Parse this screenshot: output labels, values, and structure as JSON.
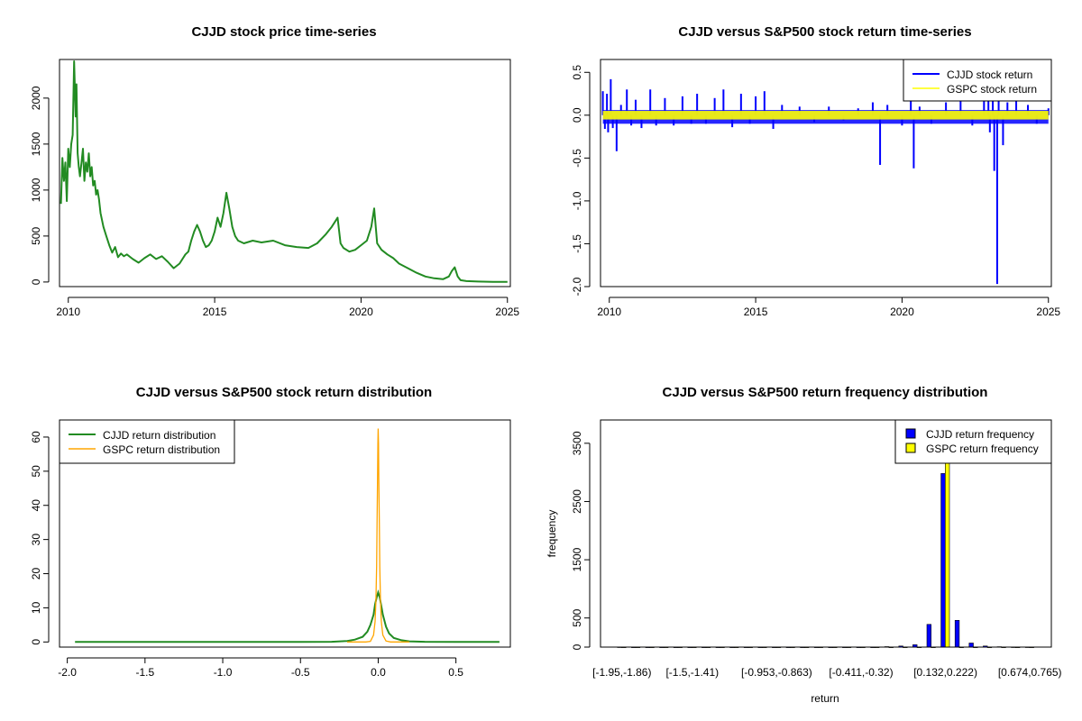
{
  "chart_data": [
    {
      "id": "price",
      "type": "line",
      "title": "CJJD stock price time-series",
      "xlabel": "",
      "ylabel": "",
      "xlim": [
        2009.7,
        2025.1
      ],
      "ylim": [
        -50,
        2420
      ],
      "xticks": [
        2010,
        2015,
        2020,
        2025
      ],
      "yticks": [
        0,
        500,
        1000,
        1500,
        2000
      ],
      "grid": false,
      "series": [
        {
          "color": "#228B22",
          "x": [
            2009.75,
            2009.8,
            2009.85,
            2009.9,
            2009.95,
            2010.0,
            2010.05,
            2010.1,
            2010.15,
            2010.2,
            2010.25,
            2010.28,
            2010.32,
            2010.36,
            2010.4,
            2010.45,
            2010.5,
            2010.55,
            2010.6,
            2010.65,
            2010.7,
            2010.75,
            2010.8,
            2010.85,
            2010.9,
            2010.95,
            2011.0,
            2011.05,
            2011.1,
            2011.2,
            2011.3,
            2011.4,
            2011.5,
            2011.6,
            2011.7,
            2011.8,
            2011.9,
            2012.0,
            2012.2,
            2012.4,
            2012.6,
            2012.8,
            2013.0,
            2013.2,
            2013.4,
            2013.6,
            2013.8,
            2014.0,
            2014.1,
            2014.2,
            2014.3,
            2014.4,
            2014.5,
            2014.6,
            2014.7,
            2014.8,
            2014.9,
            2015.0,
            2015.1,
            2015.2,
            2015.3,
            2015.4,
            2015.5,
            2015.6,
            2015.7,
            2015.8,
            2016.0,
            2016.3,
            2016.6,
            2017.0,
            2017.4,
            2017.8,
            2018.2,
            2018.5,
            2018.8,
            2019.0,
            2019.1,
            2019.2,
            2019.3,
            2019.4,
            2019.6,
            2019.8,
            2020.0,
            2020.2,
            2020.35,
            2020.45,
            2020.55,
            2020.7,
            2020.9,
            2021.1,
            2021.3,
            2021.6,
            2021.9,
            2022.2,
            2022.5,
            2022.8,
            2023.0,
            2023.1,
            2023.2,
            2023.3,
            2023.4,
            2023.6,
            2024.0,
            2024.5,
            2025.0
          ],
          "values": [
            850,
            1350,
            1100,
            1300,
            880,
            1450,
            1250,
            1500,
            1600,
            2400,
            1800,
            2150,
            1400,
            1250,
            1150,
            1300,
            1450,
            1100,
            1300,
            1200,
            1400,
            1150,
            1250,
            1050,
            1100,
            950,
            1000,
            900,
            750,
            600,
            500,
            400,
            320,
            380,
            270,
            310,
            280,
            300,
            250,
            210,
            260,
            300,
            250,
            280,
            220,
            150,
            200,
            300,
            330,
            450,
            550,
            620,
            550,
            450,
            380,
            400,
            450,
            550,
            700,
            600,
            750,
            970,
            800,
            600,
            500,
            450,
            420,
            450,
            430,
            450,
            400,
            380,
            370,
            420,
            520,
            600,
            650,
            700,
            420,
            370,
            330,
            350,
            400,
            450,
            600,
            800,
            420,
            350,
            300,
            260,
            200,
            150,
            100,
            60,
            40,
            30,
            60,
            120,
            160,
            60,
            20,
            10,
            5,
            2,
            1
          ]
        }
      ]
    },
    {
      "id": "returns",
      "type": "line",
      "title": "CJJD versus S&P500 stock return time-series",
      "xlabel": "",
      "ylabel": "",
      "xlim": [
        2009.7,
        2025.1
      ],
      "ylim": [
        -2.0,
        0.65
      ],
      "xticks": [
        2010,
        2015,
        2020,
        2025
      ],
      "yticks": [
        0.5,
        0.0,
        -0.5,
        -1.0,
        -1.5,
        -2.0
      ],
      "ytick_labels": [
        "0.5",
        "0.0",
        "-0.5",
        "-1.0",
        "-1.5",
        "-2.0"
      ],
      "grid": false,
      "legend_position": "top-right",
      "series": [
        {
          "name": "CJJD stock return",
          "color": "#0000FF",
          "spikes": [
            [
              2009.78,
              0.28
            ],
            [
              2009.85,
              -0.16
            ],
            [
              2009.92,
              0.25
            ],
            [
              2009.96,
              -0.2
            ],
            [
              2010.05,
              0.42
            ],
            [
              2010.12,
              -0.15
            ],
            [
              2010.25,
              -0.42
            ],
            [
              2010.4,
              0.12
            ],
            [
              2010.6,
              0.3
            ],
            [
              2010.75,
              -0.12
            ],
            [
              2010.9,
              0.18
            ],
            [
              2011.1,
              -0.15
            ],
            [
              2011.4,
              0.3
            ],
            [
              2011.6,
              -0.12
            ],
            [
              2011.9,
              0.2
            ],
            [
              2012.2,
              -0.12
            ],
            [
              2012.5,
              0.22
            ],
            [
              2012.8,
              -0.1
            ],
            [
              2013.0,
              0.25
            ],
            [
              2013.3,
              -0.1
            ],
            [
              2013.6,
              0.2
            ],
            [
              2013.9,
              0.3
            ],
            [
              2014.2,
              -0.14
            ],
            [
              2014.5,
              0.25
            ],
            [
              2014.8,
              -0.1
            ],
            [
              2015.0,
              0.22
            ],
            [
              2015.3,
              0.28
            ],
            [
              2015.6,
              -0.16
            ],
            [
              2015.9,
              0.12
            ],
            [
              2016.5,
              0.1
            ],
            [
              2017.0,
              -0.08
            ],
            [
              2017.5,
              0.1
            ],
            [
              2018.0,
              -0.06
            ],
            [
              2018.5,
              0.08
            ],
            [
              2019.0,
              0.15
            ],
            [
              2019.25,
              -0.58
            ],
            [
              2019.5,
              0.12
            ],
            [
              2020.0,
              -0.12
            ],
            [
              2020.3,
              0.2
            ],
            [
              2020.4,
              -0.62
            ],
            [
              2020.6,
              0.1
            ],
            [
              2021.0,
              -0.1
            ],
            [
              2021.5,
              0.15
            ],
            [
              2022.0,
              0.18
            ],
            [
              2022.4,
              -0.12
            ],
            [
              2022.8,
              0.2
            ],
            [
              2022.95,
              0.3
            ],
            [
              2023.0,
              -0.2
            ],
            [
              2023.1,
              0.28
            ],
            [
              2023.15,
              -0.65
            ],
            [
              2023.25,
              -1.97
            ],
            [
              2023.3,
              0.3
            ],
            [
              2023.45,
              -0.35
            ],
            [
              2023.6,
              0.15
            ],
            [
              2023.9,
              0.2
            ],
            [
              2024.3,
              0.12
            ],
            [
              2024.6,
              -0.1
            ],
            [
              2025.0,
              0.08
            ]
          ]
        },
        {
          "name": "GSPC stock return",
          "color": "#FFFF00",
          "band": [
            -0.05,
            0.05
          ]
        }
      ]
    },
    {
      "id": "density",
      "type": "line",
      "title": "CJJD versus S&P500 stock return distribution",
      "xlabel": "",
      "ylabel": "",
      "xlim": [
        -2.05,
        0.85
      ],
      "ylim": [
        -1.5,
        65
      ],
      "xticks": [
        -2.0,
        -1.5,
        -1.0,
        -0.5,
        0.0,
        0.5
      ],
      "xtick_labels": [
        "-2.0",
        "-1.5",
        "-1.0",
        "-0.5",
        "0.0",
        "0.5"
      ],
      "yticks": [
        0,
        10,
        20,
        30,
        40,
        50,
        60
      ],
      "grid": false,
      "legend_position": "top-left",
      "series": [
        {
          "name": "CJJD return distribution",
          "color": "#228B22",
          "x": [
            -1.95,
            -1.0,
            -0.5,
            -0.3,
            -0.2,
            -0.15,
            -0.1,
            -0.07,
            -0.05,
            -0.03,
            -0.02,
            -0.01,
            0.0,
            0.01,
            0.02,
            0.03,
            0.05,
            0.07,
            0.1,
            0.15,
            0.2,
            0.3,
            0.5,
            0.78
          ],
          "values": [
            0,
            0,
            0,
            0.05,
            0.3,
            0.7,
            1.5,
            3,
            5,
            8,
            11,
            13,
            14.5,
            13,
            10.5,
            8,
            4.5,
            2.5,
            1.2,
            0.5,
            0.2,
            0.05,
            0,
            0
          ]
        },
        {
          "name": "GSPC return distribution",
          "color": "#FFA500",
          "x": [
            -0.2,
            -0.08,
            -0.05,
            -0.03,
            -0.02,
            -0.015,
            -0.01,
            -0.007,
            -0.004,
            -0.002,
            0.0,
            0.002,
            0.004,
            0.007,
            0.01,
            0.015,
            0.02,
            0.03,
            0.05,
            0.08,
            0.2
          ],
          "values": [
            0,
            0,
            0.2,
            2,
            6,
            12,
            22,
            35,
            50,
            58,
            62.5,
            58,
            48,
            35,
            22,
            12,
            6,
            2,
            0.3,
            0,
            0
          ]
        }
      ]
    },
    {
      "id": "frequency",
      "type": "bar",
      "title": "CJJD versus S&P500 return frequency distribution",
      "xlabel": "return",
      "ylabel": "frequency",
      "ylim": [
        0,
        3900
      ],
      "yticks": [
        0,
        500,
        1500,
        2500,
        3500
      ],
      "grid": false,
      "legend_position": "top-right",
      "tick_labels": [
        "[-1.95,-1.86)",
        "[-1.5,-1.41)",
        "[-0.953,-0.863)",
        "[-0.411,-0.32)",
        "[0.132,0.222)",
        "[0.674,0.765)"
      ],
      "tick_label_bins": [
        0,
        5,
        11,
        17,
        23,
        29
      ],
      "n_bins": 30,
      "series": [
        {
          "name": "CJJD return frequency",
          "color": "#0000FF",
          "values": [
            1,
            0,
            0,
            0,
            0,
            0,
            0,
            0,
            0,
            0,
            0,
            0,
            0,
            0,
            0,
            0,
            0,
            0,
            0,
            8,
            18,
            40,
            390,
            2980,
            460,
            70,
            18,
            6,
            2,
            1
          ]
        },
        {
          "name": "GSPC return frequency",
          "color": "#FFFF00",
          "values": [
            0,
            0,
            0,
            0,
            0,
            0,
            0,
            0,
            0,
            0,
            0,
            0,
            0,
            0,
            0,
            0,
            0,
            0,
            0,
            0,
            0,
            0,
            0,
            3850,
            0,
            0,
            0,
            0,
            0,
            0
          ]
        }
      ]
    }
  ]
}
